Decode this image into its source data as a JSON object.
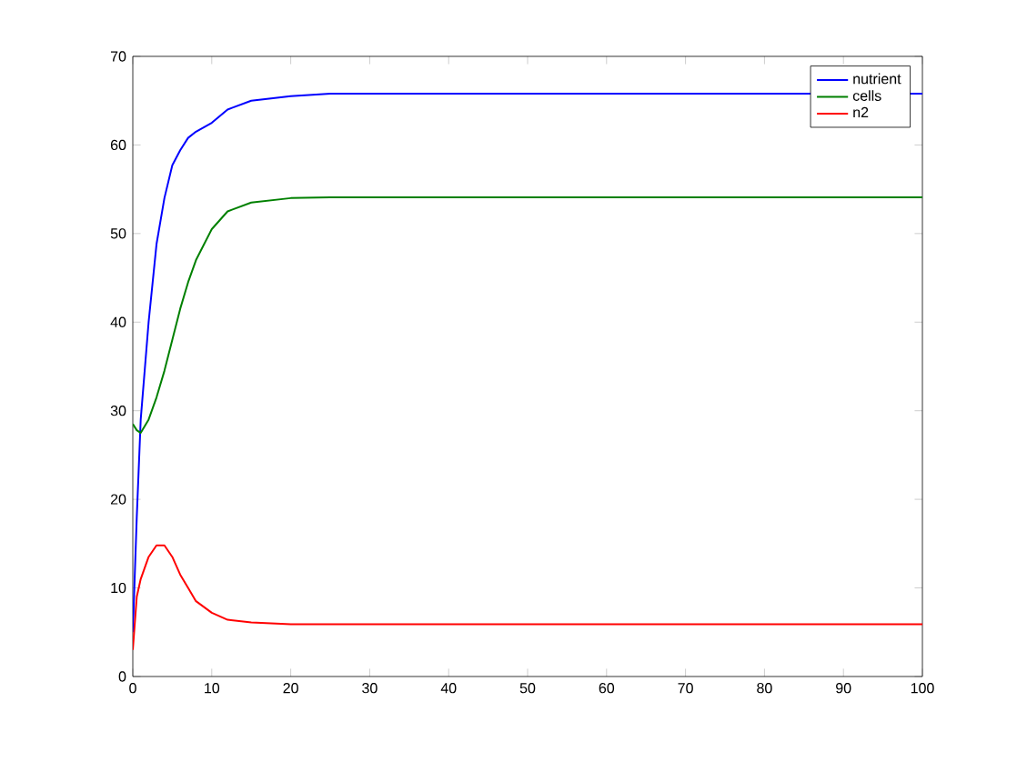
{
  "chart_data": {
    "type": "line",
    "x": [
      0,
      0.5,
      1,
      2,
      3,
      4,
      5,
      6,
      7,
      8,
      10,
      12,
      15,
      20,
      25,
      30,
      50,
      100
    ],
    "series": [
      {
        "name": "nutrient",
        "color": "#0000ff",
        "values": [
          5,
          18,
          29,
          40,
          48.8,
          54,
          57.7,
          59.4,
          60.8,
          61.5,
          62.5,
          64,
          65,
          65.5,
          65.8,
          65.8,
          65.8,
          65.8
        ]
      },
      {
        "name": "cells",
        "color": "#008000",
        "values": [
          28.5,
          27.8,
          27.5,
          29,
          31.5,
          34.5,
          38,
          41.5,
          44.5,
          47,
          50.5,
          52.5,
          53.5,
          54,
          54.1,
          54.1,
          54.1,
          54.1
        ]
      },
      {
        "name": "n2",
        "color": "#ff0000",
        "values": [
          3,
          9,
          11,
          13.5,
          14.8,
          14.8,
          13.5,
          11.5,
          10,
          8.5,
          7.2,
          6.4,
          6.1,
          5.9,
          5.9,
          5.9,
          5.9,
          5.9
        ]
      }
    ],
    "xlim": [
      0,
      100
    ],
    "xticks": [
      0,
      10,
      20,
      30,
      40,
      50,
      60,
      70,
      80,
      90,
      100
    ],
    "ylim": [
      0,
      70
    ],
    "yticks": [
      0,
      10,
      20,
      30,
      40,
      50,
      60,
      70
    ],
    "legend": "top right",
    "grid": false,
    "marker": "none",
    "line_style": "solid"
  }
}
